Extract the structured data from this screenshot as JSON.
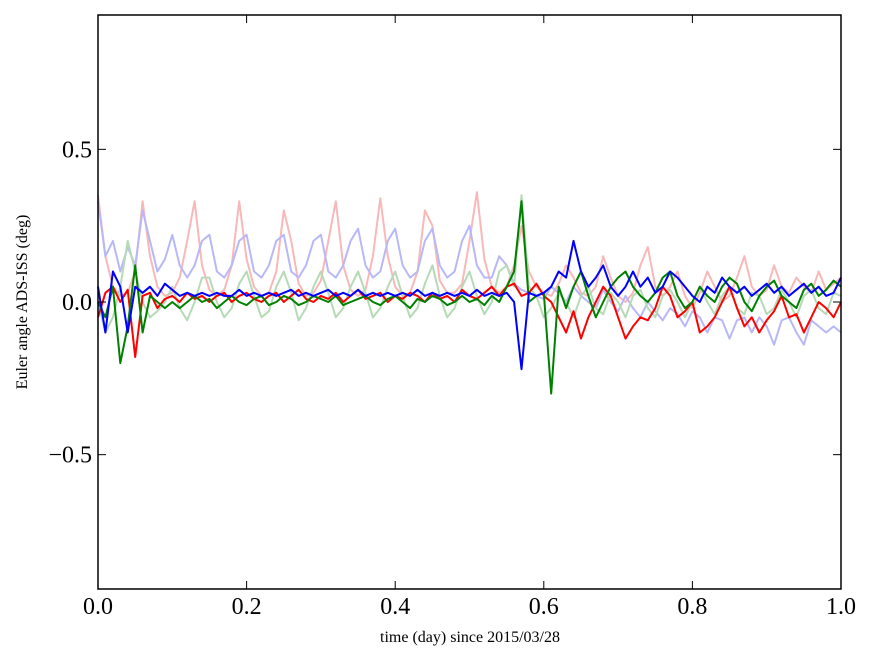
{
  "chart_data": {
    "type": "line",
    "x_label": "time (day) since 2015/03/28",
    "y_label": "Euler angle ADS-ISS (deg)",
    "xlim": [
      0,
      1
    ],
    "ylim": [
      -0.94,
      0.94
    ],
    "xticks": [
      {
        "value": 0,
        "label": "0.0"
      },
      0.2,
      0.4,
      0.6,
      0.8,
      {
        "value": 1,
        "label": "1.0"
      }
    ],
    "yticks": [
      {
        "value": -0.5,
        "label": "−0.5"
      },
      {
        "value": 0,
        "label": "0.0"
      },
      0.5
    ],
    "grid": false,
    "x": [
      0,
      0.01,
      0.02,
      0.03,
      0.04,
      0.05,
      0.06,
      0.07,
      0.08,
      0.09,
      0.1,
      0.11,
      0.12,
      0.13,
      0.14,
      0.15,
      0.16,
      0.17,
      0.18,
      0.19,
      0.2,
      0.21,
      0.22,
      0.23,
      0.24,
      0.25,
      0.26,
      0.27,
      0.28,
      0.29,
      0.3,
      0.31,
      0.32,
      0.33,
      0.34,
      0.35,
      0.36,
      0.37,
      0.38,
      0.39,
      0.4,
      0.41,
      0.42,
      0.43,
      0.44,
      0.45,
      0.46,
      0.47,
      0.48,
      0.49,
      0.5,
      0.51,
      0.52,
      0.53,
      0.54,
      0.55,
      0.56,
      0.57,
      0.58,
      0.59,
      0.6,
      0.61,
      0.62,
      0.63,
      0.64,
      0.65,
      0.66,
      0.67,
      0.68,
      0.69,
      0.7,
      0.71,
      0.72,
      0.73,
      0.74,
      0.75,
      0.76,
      0.77,
      0.78,
      0.79,
      0.8,
      0.81,
      0.82,
      0.83,
      0.84,
      0.85,
      0.86,
      0.87,
      0.88,
      0.89,
      0.9,
      0.91,
      0.92,
      0.93,
      0.94,
      0.95,
      0.96,
      0.97,
      0.98,
      0.99,
      1
    ],
    "series": [
      {
        "color": "#f9b8b8",
        "values": [
          0.35,
          0.15,
          0.05,
          0.02,
          0.03,
          0.1,
          0.33,
          0.15,
          0.05,
          0.02,
          0.03,
          0.08,
          0.2,
          0.33,
          0.12,
          0.04,
          0.02,
          0.04,
          0.12,
          0.33,
          0.14,
          0.05,
          0.02,
          0.03,
          0.1,
          0.3,
          0.2,
          0.06,
          0.02,
          0.03,
          0.07,
          0.2,
          0.33,
          0.12,
          0.04,
          0.02,
          0.04,
          0.15,
          0.34,
          0.15,
          0.05,
          0.02,
          0.03,
          0.1,
          0.3,
          0.25,
          0.07,
          0.03,
          0.03,
          0.06,
          0.2,
          0.36,
          0.14,
          0.05,
          0.03,
          0.05,
          0.12,
          0.25,
          0.1,
          0.05,
          0.03,
          0.02,
          0.06,
          0.12,
          0.08,
          0.03,
          0.02,
          0.05,
          0.15,
          0.08,
          0.02,
          0.0,
          0.03,
          0.12,
          0.18,
          0.05,
          0.02,
          0.05,
          0.1,
          0.02,
          -0.02,
          0.03,
          0.1,
          0.05,
          0.0,
          0.02,
          0.08,
          0.15,
          0.05,
          0.02,
          0.04,
          0.12,
          0.05,
          0.03,
          0.08,
          0.05,
          0.03,
          0.1,
          0.04,
          0.06,
          0.08
        ]
      },
      {
        "color": "#b8b8f8",
        "values": [
          0.33,
          0.15,
          0.2,
          0.1,
          0.18,
          0.12,
          0.3,
          0.2,
          0.1,
          0.14,
          0.22,
          0.12,
          0.08,
          0.12,
          0.2,
          0.22,
          0.1,
          0.08,
          0.12,
          0.2,
          0.22,
          0.1,
          0.08,
          0.12,
          0.2,
          0.22,
          0.1,
          0.08,
          0.12,
          0.2,
          0.22,
          0.1,
          0.08,
          0.12,
          0.2,
          0.24,
          0.12,
          0.08,
          0.1,
          0.2,
          0.24,
          0.12,
          0.08,
          0.1,
          0.2,
          0.24,
          0.12,
          0.08,
          0.1,
          0.2,
          0.25,
          0.12,
          0.08,
          0.08,
          0.15,
          0.12,
          0.06,
          0.04,
          0.03,
          0.02,
          0.01,
          0.05,
          0.03,
          0.0,
          0.05,
          0.02,
          0.0,
          -0.02,
          0.04,
          0.0,
          -0.03,
          0.02,
          -0.02,
          -0.05,
          0.0,
          -0.03,
          -0.06,
          -0.02,
          -0.04,
          -0.08,
          -0.03,
          -0.05,
          -0.1,
          -0.05,
          -0.06,
          -0.12,
          -0.06,
          -0.05,
          -0.1,
          -0.05,
          -0.08,
          -0.14,
          -0.06,
          -0.05,
          -0.1,
          -0.14,
          -0.06,
          -0.08,
          -0.1,
          -0.08,
          -0.1
        ]
      },
      {
        "color": "#b6dab6",
        "values": [
          0.0,
          -0.1,
          -0.05,
          0.05,
          0.2,
          0.1,
          0.0,
          -0.05,
          -0.03,
          0.0,
          0.05,
          -0.02,
          -0.06,
          0.0,
          0.08,
          0.08,
          0.0,
          -0.05,
          -0.02,
          0.06,
          0.1,
          0.02,
          -0.05,
          -0.03,
          0.05,
          0.1,
          0.03,
          -0.06,
          -0.02,
          0.05,
          0.1,
          0.03,
          -0.05,
          -0.02,
          0.05,
          0.1,
          0.03,
          -0.05,
          -0.02,
          0.05,
          0.1,
          0.02,
          -0.05,
          -0.02,
          0.06,
          0.12,
          0.02,
          -0.05,
          -0.02,
          0.05,
          0.1,
          0.02,
          -0.04,
          0.0,
          0.1,
          0.12,
          0.05,
          0.35,
          0.05,
          0.02,
          -0.05,
          -0.02,
          0.03,
          0.0,
          -0.05,
          0.02,
          0.05,
          -0.02,
          -0.04,
          0.03,
          0.0,
          -0.05,
          0.02,
          0.04,
          -0.02,
          -0.05,
          0.02,
          0.04,
          0.0,
          -0.05,
          0.0,
          0.05,
          0.0,
          -0.04,
          0.02,
          0.05,
          -0.02,
          -0.04,
          0.03,
          0.02,
          -0.04,
          -0.02,
          0.04,
          0.0,
          -0.05,
          0.02,
          0.04,
          -0.02,
          -0.04,
          0.03,
          0.02
        ]
      },
      {
        "color": "#ff0000",
        "values": [
          -0.05,
          0.03,
          0.05,
          0.0,
          0.04,
          -0.18,
          0.02,
          0.03,
          -0.02,
          0.01,
          0.02,
          0.0,
          0.03,
          0.01,
          0.02,
          0.0,
          0.02,
          0.03,
          0.0,
          0.02,
          0.03,
          0.01,
          0.0,
          0.02,
          0.03,
          0.0,
          0.02,
          0.04,
          0.01,
          0.0,
          0.02,
          0.01,
          0.03,
          0.0,
          0.02,
          0.04,
          0.01,
          0.02,
          0.03,
          0.0,
          0.02,
          0.01,
          0.03,
          0.02,
          0.0,
          0.03,
          0.01,
          0.02,
          0.0,
          0.04,
          0.02,
          0.01,
          0.03,
          0.05,
          0.02,
          0.05,
          0.06,
          0.02,
          0.03,
          0.06,
          0.02,
          0.0,
          -0.05,
          -0.1,
          -0.03,
          -0.12,
          -0.05,
          0.0,
          0.05,
          0.02,
          -0.05,
          -0.12,
          -0.08,
          -0.05,
          -0.06,
          -0.02,
          0.05,
          0.02,
          -0.05,
          -0.03,
          0.0,
          -0.1,
          -0.08,
          -0.05,
          0.0,
          0.05,
          -0.02,
          -0.08,
          -0.05,
          -0.1,
          -0.06,
          -0.03,
          0.02,
          -0.05,
          -0.04,
          -0.1,
          -0.05,
          0.0,
          -0.02,
          -0.05,
          0.0
        ]
      },
      {
        "color": "#008000",
        "values": [
          0.0,
          -0.05,
          0.05,
          -0.2,
          -0.08,
          0.12,
          -0.1,
          0.02,
          0.0,
          -0.02,
          0.0,
          -0.02,
          0.0,
          0.02,
          0.0,
          0.01,
          -0.02,
          0.0,
          0.02,
          0.0,
          -0.01,
          0.01,
          0.02,
          -0.01,
          0.0,
          0.02,
          0.01,
          -0.01,
          0.0,
          0.02,
          0.01,
          0.0,
          0.02,
          -0.01,
          0.0,
          0.01,
          0.02,
          0.0,
          -0.01,
          0.01,
          0.02,
          0.0,
          -0.02,
          0.01,
          0.0,
          0.02,
          0.01,
          -0.01,
          0.0,
          0.02,
          0.0,
          0.01,
          -0.01,
          0.02,
          0.0,
          0.05,
          0.1,
          0.33,
          0.0,
          0.02,
          0.03,
          -0.3,
          0.05,
          -0.02,
          0.05,
          0.1,
          0.02,
          -0.05,
          0.0,
          0.05,
          0.08,
          0.1,
          0.05,
          0.02,
          0.0,
          0.03,
          0.08,
          0.1,
          0.02,
          -0.02,
          0.0,
          0.05,
          0.02,
          0.0,
          0.05,
          0.08,
          0.06,
          0.0,
          -0.03,
          0.02,
          0.05,
          0.07,
          0.02,
          0.0,
          -0.02,
          0.04,
          0.06,
          0.02,
          0.04,
          0.07,
          0.05
        ]
      },
      {
        "color": "#0000ff",
        "values": [
          0.05,
          -0.1,
          0.1,
          0.05,
          -0.1,
          0.05,
          0.03,
          0.05,
          0.02,
          0.06,
          0.04,
          0.02,
          0.03,
          0.02,
          0.03,
          0.02,
          0.03,
          0.02,
          0.02,
          0.04,
          0.02,
          0.03,
          0.02,
          0.03,
          0.02,
          0.03,
          0.04,
          0.02,
          0.03,
          0.02,
          0.03,
          0.04,
          0.02,
          0.03,
          0.02,
          0.04,
          0.02,
          0.03,
          0.02,
          0.03,
          0.02,
          0.03,
          0.02,
          0.04,
          0.02,
          0.03,
          0.02,
          0.03,
          0.02,
          0.03,
          0.02,
          0.04,
          0.02,
          0.03,
          0.02,
          0.03,
          0.0,
          -0.22,
          0.03,
          0.02,
          0.03,
          0.05,
          0.1,
          0.08,
          0.2,
          0.1,
          0.05,
          0.08,
          0.12,
          0.05,
          0.02,
          0.05,
          0.1,
          0.05,
          0.08,
          0.03,
          0.05,
          0.1,
          0.08,
          0.05,
          0.02,
          0.0,
          0.05,
          0.03,
          0.08,
          0.05,
          0.03,
          0.05,
          0.02,
          0.04,
          0.06,
          0.03,
          0.05,
          0.02,
          0.04,
          0.06,
          0.03,
          0.05,
          0.02,
          0.03,
          0.08
        ]
      }
    ]
  }
}
